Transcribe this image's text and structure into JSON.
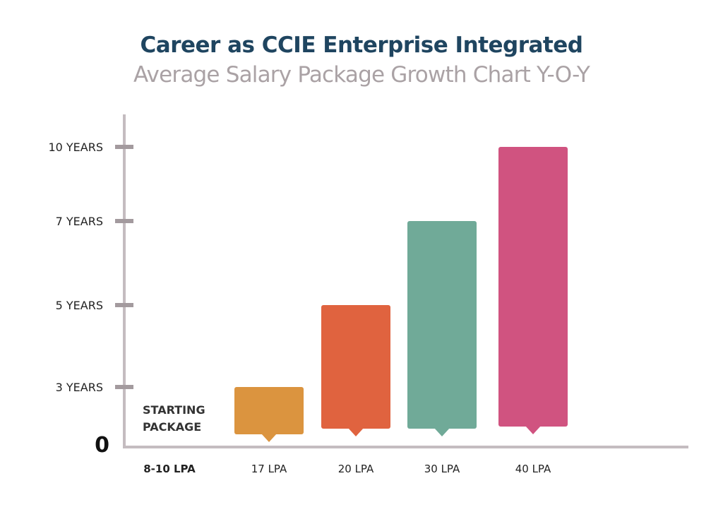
{
  "chart_data": {
    "type": "bar",
    "title": "Career as CCIE Enterprise Integrated",
    "subtitle": "Average Salary Package Growth Chart Y-O-Y",
    "categories": [
      "8-10 LPA",
      "17 LPA",
      "20 LPA",
      "30 LPA",
      "40 LPA"
    ],
    "values": [
      0,
      3,
      5,
      7,
      10
    ],
    "y_unit": "years",
    "y_ticks": [
      {
        "value": 0,
        "label": "0"
      },
      {
        "value": 3,
        "label": "3 YEARS"
      },
      {
        "value": 5,
        "label": "5 YEARS"
      },
      {
        "value": 7,
        "label": "7 YEARS"
      },
      {
        "value": 10,
        "label": "10 YEARS"
      }
    ],
    "ylim": [
      0,
      10
    ],
    "annotation": "STARTING PACKAGE",
    "colors": [
      "",
      "#DB943F",
      "#E0633F",
      "#70AA98",
      "#D05380"
    ],
    "grid": false,
    "legend": "none"
  }
}
